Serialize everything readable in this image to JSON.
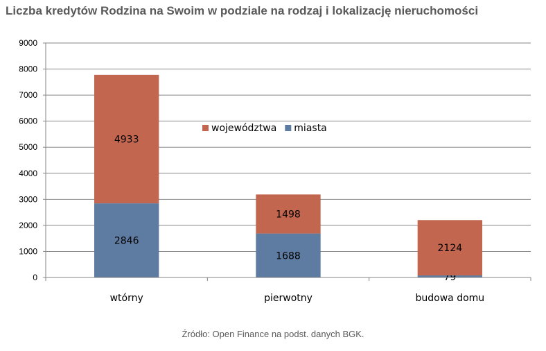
{
  "title": "Liczba kredytów Rodzina na Swoim w podziale na rodzaj i lokalizację nieruchomości",
  "source": "Źródło: Open Finance na podst. danych BGK.",
  "colors": {
    "miasta": "#5e7ba1",
    "wojewodztwa": "#c26650",
    "grid": "#868686"
  },
  "chart_data": {
    "type": "bar",
    "stacked": true,
    "categories": [
      "wtórny",
      "pierwotny",
      "budowa domu"
    ],
    "series": [
      {
        "name": "miasta",
        "values": [
          2846,
          1688,
          79
        ]
      },
      {
        "name": "województwa",
        "values": [
          4933,
          1498,
          2124
        ]
      }
    ],
    "ylim": [
      0,
      9000
    ],
    "yticks": [
      0,
      1000,
      2000,
      3000,
      4000,
      5000,
      6000,
      7000,
      8000,
      9000
    ],
    "grid": true,
    "legend": "inside-center",
    "legend_order": [
      "województwa",
      "miasta"
    ]
  }
}
